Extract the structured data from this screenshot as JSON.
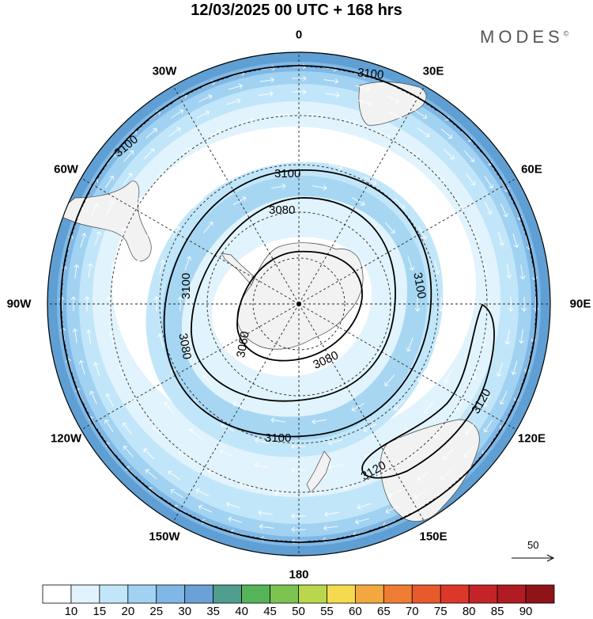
{
  "header": {
    "title": "12/03/2025  00 UTC  + 168 hrs",
    "brand": "MODES",
    "brand_mark": "©"
  },
  "longitude_labels": [
    {
      "text": "0",
      "lon": 0
    },
    {
      "text": "30E",
      "lon": 30
    },
    {
      "text": "60E",
      "lon": 60
    },
    {
      "text": "90E",
      "lon": 90
    },
    {
      "text": "120E",
      "lon": 120
    },
    {
      "text": "150E",
      "lon": 150
    },
    {
      "text": "180",
      "lon": 180
    },
    {
      "text": "150W",
      "lon": -150
    },
    {
      "text": "120W",
      "lon": -120
    },
    {
      "text": "90W",
      "lon": -90
    },
    {
      "text": "60W",
      "lon": -60
    },
    {
      "text": "30W",
      "lon": -30
    }
  ],
  "contours": {
    "labels": [
      "3100",
      "3100",
      "3100",
      "3100",
      "3100",
      "3100",
      "3100",
      "3080",
      "3080",
      "3080",
      "3060",
      "3120",
      "3120"
    ]
  },
  "reference_vector": {
    "label": "50"
  },
  "colorbar": {
    "levels": [
      "10",
      "15",
      "20",
      "25",
      "30",
      "35",
      "40",
      "45",
      "50",
      "55",
      "60",
      "65",
      "70",
      "75",
      "80",
      "85",
      "90"
    ],
    "colors": [
      "#ffffff",
      "#e1f3fc",
      "#c2e6f9",
      "#a1d2f1",
      "#7fb8e6",
      "#6aa1d7",
      "#4f9e8e",
      "#55b35a",
      "#7cc352",
      "#b9d64c",
      "#f4da4e",
      "#f2a83f",
      "#ee7d33",
      "#e65a2c",
      "#dc3829",
      "#c42427",
      "#b11c22",
      "#8f1418"
    ]
  }
}
